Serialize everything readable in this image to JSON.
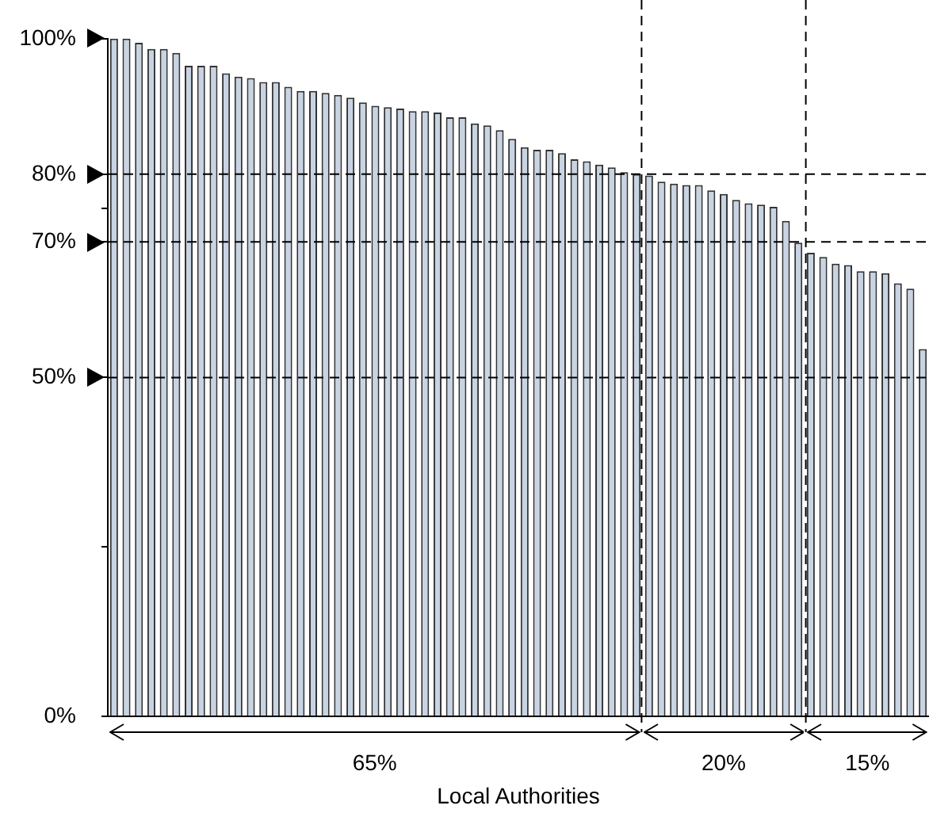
{
  "chart_data": {
    "type": "bar",
    "xlabel": "Local Authorities",
    "categories": [
      null,
      null,
      null,
      null,
      null,
      null,
      null,
      null,
      null,
      null,
      null,
      null,
      null,
      null,
      null,
      null,
      null,
      null,
      null,
      null,
      null,
      null,
      null,
      null,
      null,
      null,
      null,
      null,
      null,
      null,
      null,
      null,
      null,
      null,
      null,
      null,
      null,
      null,
      null,
      null,
      null,
      null,
      null,
      null,
      null,
      null,
      null,
      null,
      null,
      null,
      null,
      null,
      null,
      null,
      null,
      null,
      null,
      null,
      null,
      null,
      null,
      null,
      null,
      null,
      null,
      null
    ],
    "values": [
      100,
      100,
      99.4,
      98.5,
      98.5,
      97.9,
      96.0,
      96.0,
      96.0,
      94.9,
      94.4,
      94.2,
      93.6,
      93.6,
      92.9,
      92.3,
      92.3,
      92.0,
      91.7,
      91.3,
      90.6,
      90.1,
      89.9,
      89.7,
      89.3,
      89.3,
      89.1,
      88.4,
      88.4,
      87.5,
      87.2,
      86.5,
      85.2,
      84.0,
      83.6,
      83.6,
      83.1,
      82.2,
      81.9,
      81.4,
      81.0,
      80.3,
      80.0,
      79.8,
      78.9,
      78.6,
      78.4,
      78.4,
      77.6,
      77.1,
      76.2,
      75.7,
      75.5,
      75.2,
      73.1,
      69.9,
      68.4,
      67.8,
      66.8,
      66.6,
      65.7,
      65.7,
      65.4,
      63.9,
      63.1,
      54.2
    ],
    "color": "#c8d3e3",
    "ylim": [
      0,
      100
    ],
    "yticks": [
      {
        "value": 0,
        "label": "0%"
      },
      {
        "value": 25,
        "label": null
      },
      {
        "value": 50,
        "label": "50%"
      },
      {
        "value": 70,
        "label": "70%"
      },
      {
        "value": 75,
        "label": null
      },
      {
        "value": 80,
        "label": "80%"
      },
      {
        "value": 100,
        "label": "100%"
      }
    ],
    "tick_labels": "y",
    "ref_lines": [
      {
        "axis": "y",
        "value": 80,
        "line_style": "dashed",
        "color": "#000000"
      },
      {
        "axis": "y",
        "value": 70,
        "line_style": "dashed",
        "color": "#000000"
      },
      {
        "axis": "y",
        "value": 50,
        "line_style": "dashed",
        "color": "#000000"
      }
    ],
    "annotations": [
      "65%",
      "20%",
      "15%"
    ],
    "legend": false
  }
}
